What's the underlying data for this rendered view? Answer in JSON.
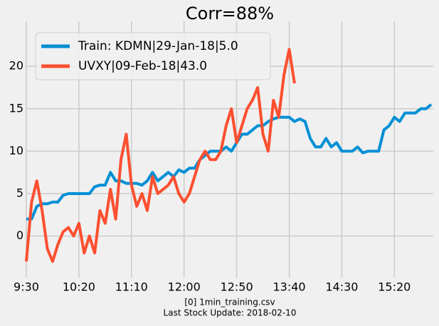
{
  "chart_data": {
    "type": "line",
    "title": "Corr=88%",
    "xlabel_lines": [
      "[0] 1min_training.csv",
      "Last Stock Update: 2018-02-10"
    ],
    "xlim": [
      0,
      387
    ],
    "ylim": [
      -4.9,
      25.3
    ],
    "xticks": [
      {
        "value": 0,
        "label": "9:30"
      },
      {
        "value": 50,
        "label": "10:20"
      },
      {
        "value": 100,
        "label": "11:10"
      },
      {
        "value": 150,
        "label": "12:00"
      },
      {
        "value": 200,
        "label": "12:50"
      },
      {
        "value": 250,
        "label": "13:40"
      },
      {
        "value": 300,
        "label": "14:30"
      },
      {
        "value": 350,
        "label": "15:20"
      }
    ],
    "yticks": [
      0,
      5,
      10,
      15,
      20
    ],
    "grid": true,
    "legend": "upper left",
    "series": [
      {
        "name": "Train: KDMN|29-Jan-18|5.0",
        "color": "#008fd5",
        "x": [
          0,
          5,
          10,
          15,
          20,
          25,
          30,
          35,
          40,
          45,
          50,
          55,
          60,
          65,
          70,
          75,
          80,
          85,
          90,
          95,
          100,
          105,
          110,
          115,
          120,
          125,
          130,
          135,
          140,
          145,
          150,
          155,
          160,
          165,
          170,
          175,
          180,
          185,
          190,
          195,
          200,
          205,
          210,
          215,
          220,
          225,
          230,
          235,
          240,
          245,
          250,
          255,
          260,
          265,
          270,
          275,
          280,
          285,
          290,
          295,
          300,
          305,
          310,
          315,
          320,
          325,
          330,
          335,
          340,
          345,
          350,
          355,
          360,
          365,
          370,
          375,
          380,
          385
        ],
        "values": [
          2,
          2,
          3.5,
          3.8,
          3.8,
          4,
          4,
          4.8,
          5,
          5,
          5,
          5,
          5,
          5.8,
          6,
          6,
          7.5,
          6.5,
          6.5,
          6.2,
          6.2,
          6.2,
          6,
          6.5,
          7.5,
          6.5,
          7,
          7.5,
          7,
          7.8,
          7.5,
          8,
          8,
          9,
          9.5,
          10,
          10,
          10,
          10.5,
          10,
          11,
          12,
          12,
          12.5,
          13,
          13,
          13.5,
          13.8,
          14,
          14,
          14,
          13.5,
          13.8,
          13.5,
          11.5,
          10.5,
          10.5,
          11.5,
          10.5,
          11,
          10,
          10,
          10,
          10.5,
          9.8,
          10,
          10,
          10,
          12.5,
          13,
          14,
          13.5,
          14.5,
          14.5,
          14.5,
          15,
          15,
          15.5
        ]
      },
      {
        "name": "UVXY|09-Feb-18|43.0",
        "color": "#fc4f30",
        "x": [
          0,
          5,
          10,
          15,
          20,
          25,
          30,
          35,
          40,
          45,
          50,
          55,
          60,
          65,
          70,
          75,
          80,
          85,
          90,
          95,
          100,
          105,
          110,
          115,
          120,
          125,
          130,
          135,
          140,
          145,
          150,
          155,
          160,
          165,
          170,
          175,
          180,
          185,
          190,
          195,
          200,
          205,
          210,
          215,
          220,
          225,
          230,
          235,
          240,
          245,
          250,
          255
        ],
        "values": [
          -3,
          4,
          6.5,
          3,
          -1.5,
          -3,
          -1,
          0.5,
          1,
          0,
          1.5,
          -2,
          0,
          -2,
          3,
          1.5,
          5.5,
          2,
          9,
          12,
          6,
          3.5,
          5,
          3,
          7,
          5,
          5.5,
          6,
          7,
          5,
          4,
          5,
          7,
          9,
          10,
          9,
          9,
          10,
          13,
          15,
          11,
          13,
          15,
          16,
          17.5,
          12,
          10,
          16,
          14,
          19,
          22,
          18
        ]
      }
    ]
  }
}
